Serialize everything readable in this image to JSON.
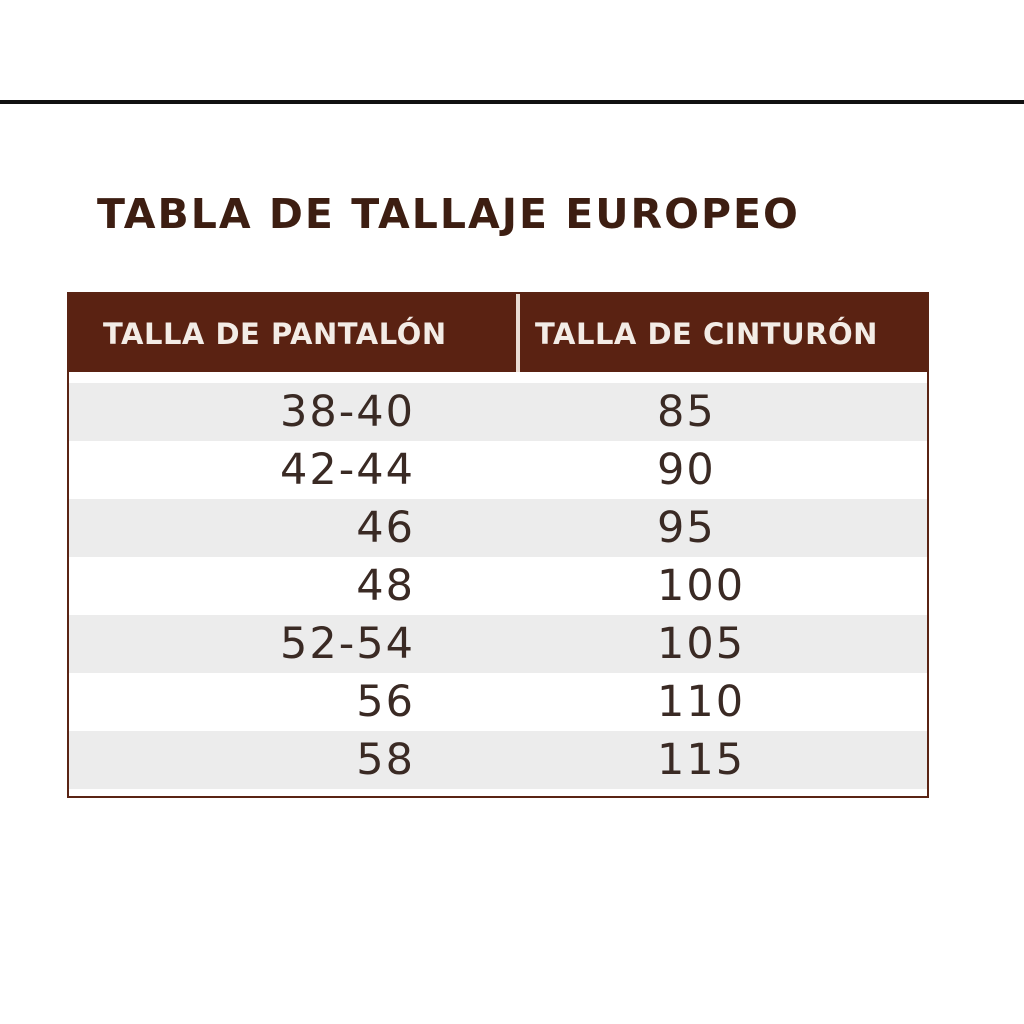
{
  "title": "TABLA DE TALLAJE EUROPEO",
  "headers": [
    "TALLA DE PANTALÓN",
    "TALLA DE CINTURÓN"
  ],
  "rows": [
    [
      "38-40",
      "85"
    ],
    [
      "42-44",
      "90"
    ],
    [
      "46",
      "95"
    ],
    [
      "48",
      "100"
    ],
    [
      "52-54",
      "105"
    ],
    [
      "56",
      "110"
    ],
    [
      "58",
      "115"
    ]
  ],
  "colors": {
    "header": "#5a2212",
    "title": "#3d1e12",
    "stripe": "#ececec"
  }
}
